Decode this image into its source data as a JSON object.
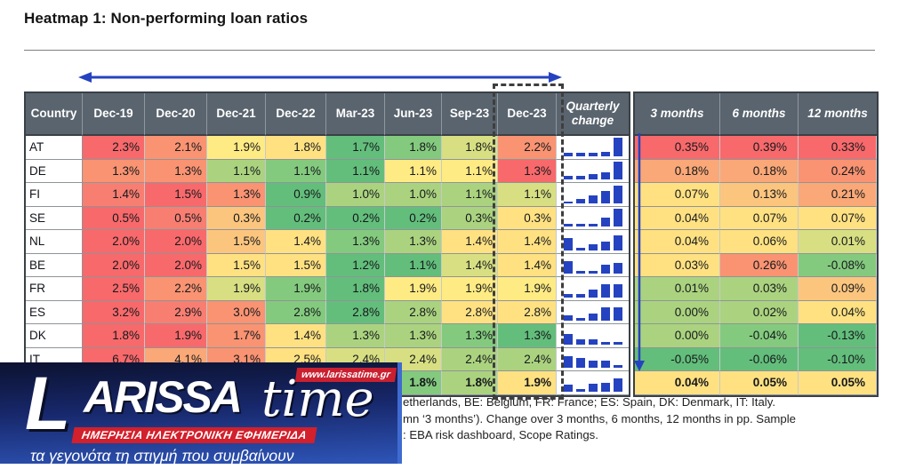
{
  "title": "Heatmap 1: Non-performing loan ratios",
  "accent": {
    "arrow_blue": "#2543C0",
    "header_gray": "#5A646E",
    "spark_blue": "#2543C0",
    "dashed_border": "#3E3E3E",
    "logo_red": "#D2202C"
  },
  "palette": {
    "r0": "#F8696B",
    "r1": "#F87E72",
    "o0": "#F99372",
    "o1": "#FAA877",
    "lo": "#FCC57E",
    "y0": "#FFE182",
    "y1": "#FFEB84",
    "yg": "#D8DF82",
    "lg": "#ABD37F",
    "g1": "#84CA7E",
    "g0": "#63BE7B",
    "none": "#FFFFFF"
  },
  "table": {
    "country_header": "Country",
    "date_headers": [
      "Dec-19",
      "Dec-20",
      "Dec-21",
      "Dec-22",
      "Mar-23",
      "Jun-23",
      "Sep-23",
      "Dec-23"
    ],
    "quarterly_header": "Quarterly change",
    "change_headers": [
      "3 months",
      "6 months",
      "12 months"
    ],
    "rows": [
      {
        "country": "AT",
        "values": [
          "2.3%",
          "2.1%",
          "1.9%",
          "1.8%",
          "1.7%",
          "1.8%",
          "1.8%",
          "2.2%"
        ],
        "cell_colors": [
          "r0",
          "o0",
          "y1",
          "y0",
          "g0",
          "g1",
          "yg",
          "o0"
        ],
        "spark": [
          4,
          4,
          4,
          5,
          21
        ],
        "changes": [
          "0.35%",
          "0.39%",
          "0.33%"
        ],
        "change_colors": [
          "r0",
          "r0",
          "r0"
        ],
        "bold": false
      },
      {
        "country": "DE",
        "values": [
          "1.3%",
          "1.3%",
          "1.1%",
          "1.1%",
          "1.1%",
          "1.1%",
          "1.1%",
          "1.3%"
        ],
        "cell_colors": [
          "o0",
          "o0",
          "lg",
          "g1",
          "g0",
          "y1",
          "y1",
          "r0"
        ],
        "spark": [
          4,
          4,
          6,
          8,
          20
        ],
        "changes": [
          "0.18%",
          "0.18%",
          "0.24%"
        ],
        "change_colors": [
          "o1",
          "o1",
          "o0"
        ],
        "bold": false
      },
      {
        "country": "FI",
        "values": [
          "1.4%",
          "1.5%",
          "1.3%",
          "0.9%",
          "1.0%",
          "1.0%",
          "1.1%",
          "1.1%"
        ],
        "cell_colors": [
          "r1",
          "r0",
          "o0",
          "g0",
          "lg",
          "lg",
          "lg",
          "yg"
        ],
        "spark": [
          2,
          5,
          9,
          14,
          20
        ],
        "changes": [
          "0.07%",
          "0.13%",
          "0.21%"
        ],
        "change_colors": [
          "y0",
          "lo",
          "o1"
        ],
        "bold": false
      },
      {
        "country": "SE",
        "values": [
          "0.5%",
          "0.5%",
          "0.3%",
          "0.2%",
          "0.2%",
          "0.2%",
          "0.3%",
          "0.3%"
        ],
        "cell_colors": [
          "r0",
          "r1",
          "lo",
          "g0",
          "g0",
          "g0",
          "lg",
          "y0"
        ],
        "spark": [
          3,
          3,
          3,
          10,
          20
        ],
        "changes": [
          "0.04%",
          "0.07%",
          "0.07%"
        ],
        "change_colors": [
          "y0",
          "y0",
          "y0"
        ],
        "bold": false
      },
      {
        "country": "NL",
        "values": [
          "2.0%",
          "2.0%",
          "1.5%",
          "1.4%",
          "1.3%",
          "1.3%",
          "1.4%",
          "1.4%"
        ],
        "cell_colors": [
          "r0",
          "r0",
          "lo",
          "y0",
          "g1",
          "lg",
          "y0",
          "y0"
        ],
        "spark": [
          14,
          3,
          7,
          10,
          17
        ],
        "changes": [
          "0.04%",
          "0.06%",
          "0.01%"
        ],
        "change_colors": [
          "y0",
          "y0",
          "yg"
        ],
        "bold": false
      },
      {
        "country": "BE",
        "values": [
          "2.0%",
          "2.0%",
          "1.5%",
          "1.5%",
          "1.2%",
          "1.1%",
          "1.4%",
          "1.4%"
        ],
        "cell_colors": [
          "r0",
          "r0",
          "y0",
          "y0",
          "g0",
          "g0",
          "yg",
          "y0"
        ],
        "spark": [
          14,
          3,
          3,
          10,
          12
        ],
        "changes": [
          "0.03%",
          "0.26%",
          "-0.08%"
        ],
        "change_colors": [
          "y0",
          "o0",
          "g1"
        ],
        "bold": false
      },
      {
        "country": "FR",
        "values": [
          "2.5%",
          "2.2%",
          "1.9%",
          "1.9%",
          "1.8%",
          "1.9%",
          "1.9%",
          "1.9%"
        ],
        "cell_colors": [
          "r0",
          "o0",
          "yg",
          "g1",
          "g0",
          "y1",
          "y1",
          "y1"
        ],
        "spark": [
          4,
          4,
          9,
          15,
          15
        ],
        "changes": [
          "0.01%",
          "0.03%",
          "0.09%"
        ],
        "change_colors": [
          "lg",
          "lg",
          "lo"
        ],
        "bold": false
      },
      {
        "country": "ES",
        "values": [
          "3.2%",
          "2.9%",
          "3.0%",
          "2.8%",
          "2.8%",
          "2.8%",
          "2.8%",
          "2.8%"
        ],
        "cell_colors": [
          "r0",
          "r1",
          "o0",
          "g1",
          "g0",
          "lg",
          "y0",
          "y0"
        ],
        "spark": [
          6,
          3,
          8,
          15,
          15
        ],
        "changes": [
          "0.00%",
          "0.02%",
          "0.04%"
        ],
        "change_colors": [
          "lg",
          "lg",
          "y0"
        ],
        "bold": false
      },
      {
        "country": "DK",
        "values": [
          "1.8%",
          "1.9%",
          "1.7%",
          "1.4%",
          "1.3%",
          "1.3%",
          "1.3%",
          "1.3%"
        ],
        "cell_colors": [
          "r0",
          "r0",
          "o0",
          "y0",
          "lg",
          "lg",
          "g1",
          "g0"
        ],
        "spark": [
          12,
          6,
          6,
          3,
          3
        ],
        "changes": [
          "0.00%",
          "-0.04%",
          "-0.13%"
        ],
        "change_colors": [
          "lg",
          "g1",
          "g0"
        ],
        "bold": false
      },
      {
        "country": "IT",
        "values": [
          "6.7%",
          "4.1%",
          "3.1%",
          "2.5%",
          "2.4%",
          "2.4%",
          "2.4%",
          "2.4%"
        ],
        "cell_colors": [
          "r0",
          "o1",
          "o0",
          "y0",
          "yg",
          "yg",
          "lg",
          "lg"
        ],
        "spark": [
          13,
          11,
          8,
          8,
          3
        ],
        "changes": [
          "-0.05%",
          "-0.06%",
          "-0.10%"
        ],
        "change_colors": [
          "g0",
          "g0",
          "g0"
        ],
        "bold": false
      },
      {
        "country": "",
        "values": [
          "",
          "",
          "",
          "",
          "",
          "1.8%",
          "1.8%",
          "1.9%"
        ],
        "cell_colors": [
          "none",
          "none",
          "none",
          "none",
          "none",
          "g1",
          "lg",
          "y0"
        ],
        "spark": [
          8,
          3,
          9,
          10,
          15
        ],
        "changes": [
          "0.04%",
          "0.05%",
          "0.05%"
        ],
        "change_colors": [
          "y0",
          "y0",
          "y0"
        ],
        "bold": true
      }
    ]
  },
  "footnote": {
    "line1": "etherlands, BE: Belgium, FR: France; ES: Spain, DK: Denmark, IT: Italy.",
    "line2": "mn ‘3 months’). Change over 3 months, 6 months, 12 months in pp. Sample",
    "line3": ": EBA risk dashboard, Scope Ratings."
  },
  "logo": {
    "brand_l": "L",
    "brand_rest": "ARISSA",
    "brand_sub": "time",
    "url": "www.larissatime.gr",
    "banner": "ΗΜΕΡΗΣΙΑ ΗΛΕΚΤΡΟΝΙΚΗ ΕΦΗΜΕΡΙΔΑ",
    "tagline": "τα γεγονότα τη στιγμή που συμβαίνουν"
  },
  "chart_data": {
    "type": "heatmap",
    "title": "Heatmap 1: Non-performing loan ratios",
    "columns": [
      "Dec-19",
      "Dec-20",
      "Dec-21",
      "Dec-22",
      "Mar-23",
      "Jun-23",
      "Sep-23",
      "Dec-23"
    ],
    "change_columns": [
      "3 months",
      "6 months",
      "12 months"
    ],
    "rows": [
      "AT",
      "DE",
      "FI",
      "SE",
      "NL",
      "BE",
      "FR",
      "ES",
      "DK",
      "IT",
      ""
    ],
    "npl_ratio_pct": [
      [
        2.3,
        2.1,
        1.9,
        1.8,
        1.7,
        1.8,
        1.8,
        2.2
      ],
      [
        1.3,
        1.3,
        1.1,
        1.1,
        1.1,
        1.1,
        1.1,
        1.3
      ],
      [
        1.4,
        1.5,
        1.3,
        0.9,
        1.0,
        1.0,
        1.1,
        1.1
      ],
      [
        0.5,
        0.5,
        0.3,
        0.2,
        0.2,
        0.2,
        0.3,
        0.3
      ],
      [
        2.0,
        2.0,
        1.5,
        1.4,
        1.3,
        1.3,
        1.4,
        1.4
      ],
      [
        2.0,
        2.0,
        1.5,
        1.5,
        1.2,
        1.1,
        1.4,
        1.4
      ],
      [
        2.5,
        2.2,
        1.9,
        1.9,
        1.8,
        1.9,
        1.9,
        1.9
      ],
      [
        3.2,
        2.9,
        3.0,
        2.8,
        2.8,
        2.8,
        2.8,
        2.8
      ],
      [
        1.8,
        1.9,
        1.7,
        1.4,
        1.3,
        1.3,
        1.3,
        1.3
      ],
      [
        6.7,
        4.1,
        3.1,
        2.5,
        2.4,
        2.4,
        2.4,
        2.4
      ],
      [
        null,
        null,
        null,
        null,
        null,
        1.8,
        1.8,
        1.9
      ]
    ],
    "change_pp": [
      [
        0.35,
        0.39,
        0.33
      ],
      [
        0.18,
        0.18,
        0.24
      ],
      [
        0.07,
        0.13,
        0.21
      ],
      [
        0.04,
        0.07,
        0.07
      ],
      [
        0.04,
        0.06,
        0.01
      ],
      [
        0.03,
        0.26,
        -0.08
      ],
      [
        0.01,
        0.03,
        0.09
      ],
      [
        0.0,
        0.02,
        0.04
      ],
      [
        0.0,
        -0.04,
        -0.13
      ],
      [
        -0.05,
        -0.06,
        -0.1
      ],
      [
        0.04,
        0.05,
        0.05
      ]
    ],
    "legend_note": "color scale red (high / rising) to green (low / falling)"
  }
}
